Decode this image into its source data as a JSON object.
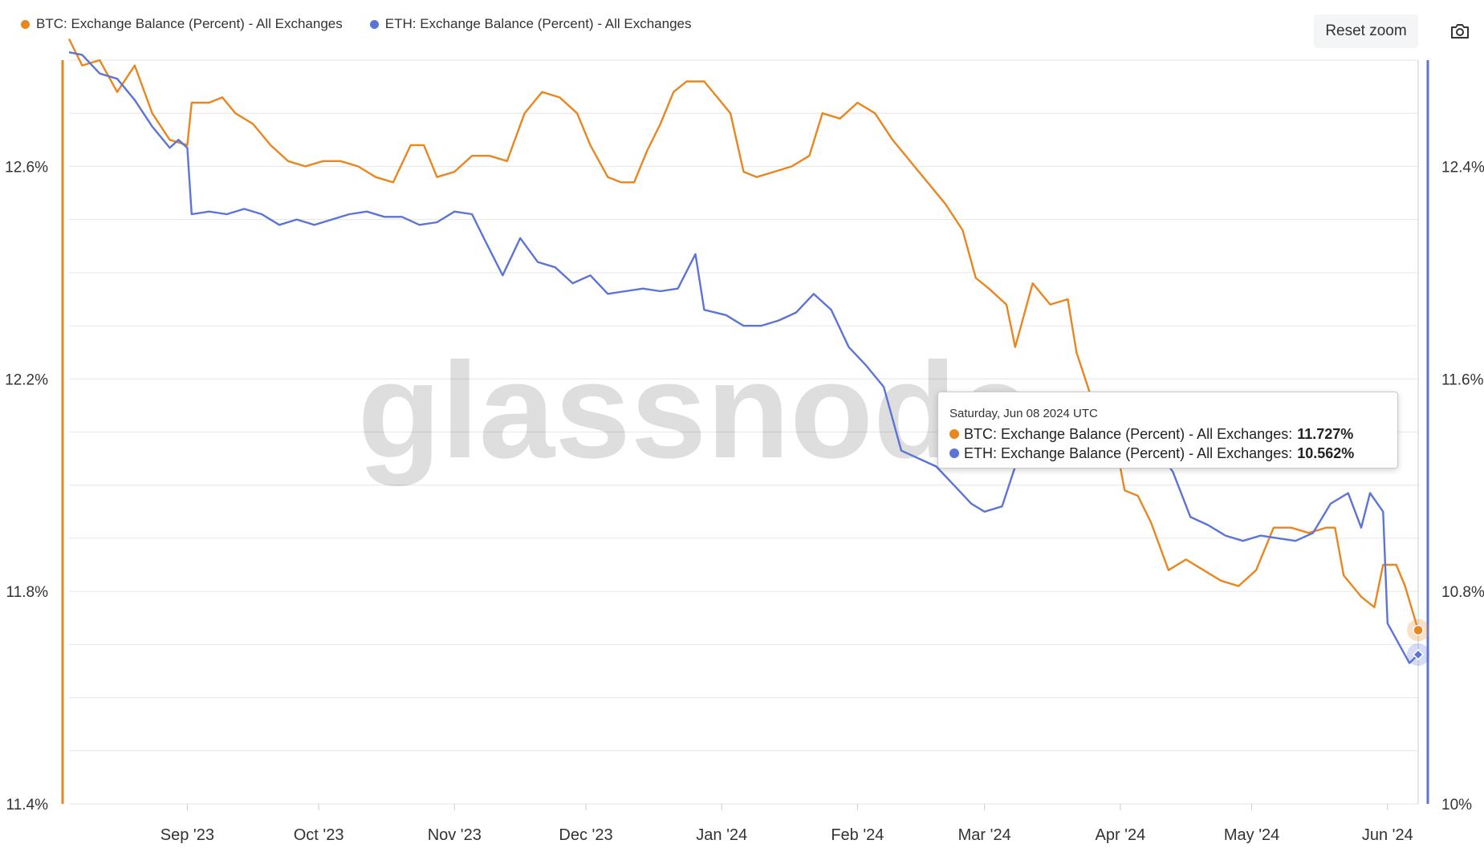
{
  "header": {
    "reset_label": "Reset zoom",
    "camera_icon": "camera-icon"
  },
  "colors": {
    "btc": "#e8861f",
    "eth": "#5b74d6",
    "grid": "#e6e6e6",
    "axis_text": "#333333"
  },
  "watermark": "glassnode",
  "tooltip": {
    "date": "Saturday, Jun 08 2024 UTC",
    "btc_label": "BTC: Exchange Balance (Percent) - All Exchanges:",
    "btc_value": "11.727%",
    "eth_label": "ETH: Exchange Balance (Percent) - All Exchanges:",
    "eth_value": "10.562%"
  },
  "chart_data": {
    "type": "line",
    "title": "",
    "x_range": [
      "2023-08-05",
      "2024-06-08"
    ],
    "x_ticks": [
      {
        "label": "Sep '23",
        "date": "2023-09-01"
      },
      {
        "label": "Oct '23",
        "date": "2023-10-01"
      },
      {
        "label": "Nov '23",
        "date": "2023-11-01"
      },
      {
        "label": "Dec '23",
        "date": "2023-12-01"
      },
      {
        "label": "Jan '24",
        "date": "2024-01-01"
      },
      {
        "label": "Feb '24",
        "date": "2024-02-01"
      },
      {
        "label": "Mar '24",
        "date": "2024-03-01"
      },
      {
        "label": "Apr '24",
        "date": "2024-04-01"
      },
      {
        "label": "May '24",
        "date": "2024-05-01"
      },
      {
        "label": "Jun '24",
        "date": "2024-06-01"
      }
    ],
    "y_left": {
      "ticks": [
        "12.6%",
        "12.2%",
        "11.8%",
        "11.4%"
      ],
      "tick_values": [
        12.6,
        12.2,
        11.8,
        11.4
      ],
      "range": [
        11.4,
        12.8
      ]
    },
    "y_right": {
      "ticks": [
        "12.4%",
        "11.6%",
        "10.8%",
        "10%"
      ],
      "tick_values": [
        12.4,
        11.6,
        10.8,
        10.0
      ],
      "range": [
        10.0,
        12.8
      ]
    },
    "legend_position": "top-left",
    "grid": true,
    "series": [
      {
        "name": "BTC: Exchange Balance (Percent) - All Exchanges",
        "axis": "left",
        "points": [
          [
            "2023-08-05",
            12.84
          ],
          [
            "2023-08-08",
            12.79
          ],
          [
            "2023-08-12",
            12.8
          ],
          [
            "2023-08-16",
            12.74
          ],
          [
            "2023-08-20",
            12.79
          ],
          [
            "2023-08-24",
            12.7
          ],
          [
            "2023-08-28",
            12.65
          ],
          [
            "2023-09-01",
            12.64
          ],
          [
            "2023-09-02",
            12.72
          ],
          [
            "2023-09-06",
            12.72
          ],
          [
            "2023-09-09",
            12.73
          ],
          [
            "2023-09-12",
            12.7
          ],
          [
            "2023-09-16",
            12.68
          ],
          [
            "2023-09-20",
            12.64
          ],
          [
            "2023-09-24",
            12.61
          ],
          [
            "2023-09-28",
            12.6
          ],
          [
            "2023-10-02",
            12.61
          ],
          [
            "2023-10-06",
            12.61
          ],
          [
            "2023-10-10",
            12.6
          ],
          [
            "2023-10-14",
            12.58
          ],
          [
            "2023-10-18",
            12.57
          ],
          [
            "2023-10-22",
            12.64
          ],
          [
            "2023-10-25",
            12.64
          ],
          [
            "2023-10-28",
            12.58
          ],
          [
            "2023-11-01",
            12.59
          ],
          [
            "2023-11-05",
            12.62
          ],
          [
            "2023-11-09",
            12.62
          ],
          [
            "2023-11-13",
            12.61
          ],
          [
            "2023-11-17",
            12.7
          ],
          [
            "2023-11-21",
            12.74
          ],
          [
            "2023-11-25",
            12.73
          ],
          [
            "2023-11-29",
            12.7
          ],
          [
            "2023-12-02",
            12.64
          ],
          [
            "2023-12-06",
            12.58
          ],
          [
            "2023-12-09",
            12.57
          ],
          [
            "2023-12-12",
            12.57
          ],
          [
            "2023-12-15",
            12.63
          ],
          [
            "2023-12-18",
            12.68
          ],
          [
            "2023-12-21",
            12.74
          ],
          [
            "2023-12-24",
            12.76
          ],
          [
            "2023-12-28",
            12.76
          ],
          [
            "2023-12-31",
            12.73
          ],
          [
            "2024-01-03",
            12.7
          ],
          [
            "2024-01-06",
            12.59
          ],
          [
            "2024-01-09",
            12.58
          ],
          [
            "2024-01-13",
            12.59
          ],
          [
            "2024-01-17",
            12.6
          ],
          [
            "2024-01-21",
            12.62
          ],
          [
            "2024-01-24",
            12.7
          ],
          [
            "2024-01-28",
            12.69
          ],
          [
            "2024-02-01",
            12.72
          ],
          [
            "2024-02-05",
            12.7
          ],
          [
            "2024-02-09",
            12.65
          ],
          [
            "2024-02-13",
            12.61
          ],
          [
            "2024-02-17",
            12.57
          ],
          [
            "2024-02-21",
            12.53
          ],
          [
            "2024-02-25",
            12.48
          ],
          [
            "2024-02-28",
            12.39
          ],
          [
            "2024-03-02",
            12.37
          ],
          [
            "2024-03-06",
            12.34
          ],
          [
            "2024-03-08",
            12.26
          ],
          [
            "2024-03-12",
            12.38
          ],
          [
            "2024-03-16",
            12.34
          ],
          [
            "2024-03-20",
            12.35
          ],
          [
            "2024-03-22",
            12.25
          ],
          [
            "2024-03-26",
            12.15
          ],
          [
            "2024-03-30",
            12.12
          ],
          [
            "2024-04-02",
            11.99
          ],
          [
            "2024-04-05",
            11.98
          ],
          [
            "2024-04-08",
            11.93
          ],
          [
            "2024-04-12",
            11.84
          ],
          [
            "2024-04-16",
            11.86
          ],
          [
            "2024-04-20",
            11.84
          ],
          [
            "2024-04-24",
            11.82
          ],
          [
            "2024-04-28",
            11.81
          ],
          [
            "2024-05-02",
            11.84
          ],
          [
            "2024-05-06",
            11.92
          ],
          [
            "2024-05-10",
            11.92
          ],
          [
            "2024-05-14",
            11.91
          ],
          [
            "2024-05-18",
            11.92
          ],
          [
            "2024-05-20",
            11.92
          ],
          [
            "2024-05-22",
            11.83
          ],
          [
            "2024-05-26",
            11.79
          ],
          [
            "2024-05-29",
            11.77
          ],
          [
            "2024-05-31",
            11.85
          ],
          [
            "2024-06-03",
            11.85
          ],
          [
            "2024-06-05",
            11.81
          ],
          [
            "2024-06-08",
            11.727
          ]
        ]
      },
      {
        "name": "ETH: Exchange Balance (Percent) - All Exchanges",
        "axis": "right",
        "points": [
          [
            "2023-08-05",
            12.83
          ],
          [
            "2023-08-08",
            12.82
          ],
          [
            "2023-08-12",
            12.75
          ],
          [
            "2023-08-16",
            12.73
          ],
          [
            "2023-08-20",
            12.65
          ],
          [
            "2023-08-24",
            12.55
          ],
          [
            "2023-08-28",
            12.47
          ],
          [
            "2023-08-30",
            12.5
          ],
          [
            "2023-09-01",
            12.47
          ],
          [
            "2023-09-02",
            12.22
          ],
          [
            "2023-09-06",
            12.23
          ],
          [
            "2023-09-10",
            12.22
          ],
          [
            "2023-09-14",
            12.24
          ],
          [
            "2023-09-18",
            12.22
          ],
          [
            "2023-09-22",
            12.18
          ],
          [
            "2023-09-26",
            12.2
          ],
          [
            "2023-09-30",
            12.18
          ],
          [
            "2023-10-04",
            12.2
          ],
          [
            "2023-10-08",
            12.22
          ],
          [
            "2023-10-12",
            12.23
          ],
          [
            "2023-10-16",
            12.21
          ],
          [
            "2023-10-20",
            12.21
          ],
          [
            "2023-10-24",
            12.18
          ],
          [
            "2023-10-28",
            12.19
          ],
          [
            "2023-11-01",
            12.23
          ],
          [
            "2023-11-05",
            12.22
          ],
          [
            "2023-11-08",
            12.12
          ],
          [
            "2023-11-12",
            11.99
          ],
          [
            "2023-11-16",
            12.13
          ],
          [
            "2023-11-20",
            12.04
          ],
          [
            "2023-11-24",
            12.02
          ],
          [
            "2023-11-28",
            11.96
          ],
          [
            "2023-12-02",
            11.99
          ],
          [
            "2023-12-06",
            11.92
          ],
          [
            "2023-12-10",
            11.93
          ],
          [
            "2023-12-14",
            11.94
          ],
          [
            "2023-12-18",
            11.93
          ],
          [
            "2023-12-22",
            11.94
          ],
          [
            "2023-12-26",
            12.07
          ],
          [
            "2023-12-28",
            11.86
          ],
          [
            "2024-01-02",
            11.84
          ],
          [
            "2024-01-06",
            11.8
          ],
          [
            "2024-01-10",
            11.8
          ],
          [
            "2024-01-14",
            11.82
          ],
          [
            "2024-01-18",
            11.85
          ],
          [
            "2024-01-22",
            11.92
          ],
          [
            "2024-01-26",
            11.86
          ],
          [
            "2024-01-30",
            11.72
          ],
          [
            "2024-02-03",
            11.65
          ],
          [
            "2024-02-07",
            11.57
          ],
          [
            "2024-02-11",
            11.33
          ],
          [
            "2024-02-15",
            11.3
          ],
          [
            "2024-02-19",
            11.27
          ],
          [
            "2024-02-23",
            11.2
          ],
          [
            "2024-02-27",
            11.13
          ],
          [
            "2024-03-01",
            11.1
          ],
          [
            "2024-03-05",
            11.12
          ],
          [
            "2024-03-08",
            11.27
          ],
          [
            "2024-03-12",
            11.33
          ],
          [
            "2024-03-16",
            11.41
          ],
          [
            "2024-03-20",
            11.44
          ],
          [
            "2024-03-24",
            11.46
          ],
          [
            "2024-03-28",
            11.44
          ],
          [
            "2024-04-01",
            11.41
          ],
          [
            "2024-04-05",
            11.38
          ],
          [
            "2024-04-09",
            11.34
          ],
          [
            "2024-04-13",
            11.25
          ],
          [
            "2024-04-17",
            11.08
          ],
          [
            "2024-04-21",
            11.05
          ],
          [
            "2024-04-25",
            11.01
          ],
          [
            "2024-04-29",
            10.99
          ],
          [
            "2024-05-03",
            11.01
          ],
          [
            "2024-05-07",
            11.0
          ],
          [
            "2024-05-11",
            10.99
          ],
          [
            "2024-05-15",
            11.02
          ],
          [
            "2024-05-19",
            11.13
          ],
          [
            "2024-05-23",
            11.17
          ],
          [
            "2024-05-26",
            11.04
          ],
          [
            "2024-05-28",
            11.17
          ],
          [
            "2024-05-31",
            11.1
          ],
          [
            "2024-06-01",
            10.68
          ],
          [
            "2024-06-04",
            10.59
          ],
          [
            "2024-06-06",
            10.53
          ],
          [
            "2024-06-08",
            10.562
          ]
        ]
      }
    ],
    "highlight_date": "2024-06-08"
  }
}
